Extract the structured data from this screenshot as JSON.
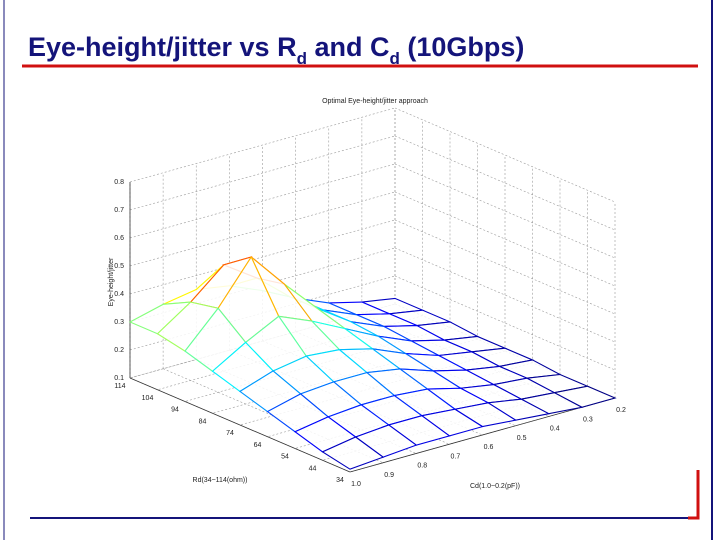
{
  "header": {
    "title_1": "Eye-height/jitter vs R",
    "sub_1": "d",
    "title_2": " and C",
    "sub_2": "d",
    "title_3": " (10Gbps)"
  },
  "chart_data": {
    "type": "surface",
    "title": "Optimal Eye-height/jitter approach",
    "xlabel": "Rd(34~114(ohm))",
    "ylabel": "Cd(1.0~0.2(pF))",
    "zlabel": "Eye-height/jitter",
    "colormap": "jet",
    "x": [
      114,
      104,
      94,
      84,
      74,
      64,
      54,
      44,
      34
    ],
    "y": [
      1.0,
      0.9,
      0.8,
      0.7,
      0.6,
      0.5,
      0.4,
      0.3,
      0.2
    ],
    "z": [
      [
        0.3,
        0.33,
        0.35,
        0.33,
        0.28,
        0.22,
        0.17,
        0.14,
        0.12
      ],
      [
        0.3,
        0.38,
        0.48,
        0.4,
        0.3,
        0.22,
        0.17,
        0.14,
        0.12
      ],
      [
        0.28,
        0.4,
        0.55,
        0.42,
        0.3,
        0.22,
        0.17,
        0.14,
        0.12
      ],
      [
        0.25,
        0.32,
        0.38,
        0.33,
        0.27,
        0.21,
        0.16,
        0.13,
        0.11
      ],
      [
        0.22,
        0.26,
        0.28,
        0.27,
        0.24,
        0.19,
        0.15,
        0.13,
        0.11
      ],
      [
        0.19,
        0.22,
        0.23,
        0.23,
        0.21,
        0.17,
        0.14,
        0.12,
        0.11
      ],
      [
        0.16,
        0.18,
        0.19,
        0.19,
        0.18,
        0.15,
        0.13,
        0.12,
        0.1
      ],
      [
        0.13,
        0.15,
        0.16,
        0.16,
        0.15,
        0.14,
        0.12,
        0.11,
        0.1
      ],
      [
        0.11,
        0.12,
        0.13,
        0.13,
        0.13,
        0.12,
        0.11,
        0.1,
        0.1
      ]
    ],
    "xlim": [
      34,
      114
    ],
    "xticks": [
      114,
      104,
      94,
      84,
      74,
      64,
      54,
      44,
      34
    ],
    "ylim": [
      0.2,
      1.0
    ],
    "yticks": [
      {
        "value": 1.0,
        "label": "1.0"
      },
      0.9,
      0.8,
      0.7,
      0.6,
      0.5,
      0.4,
      0.3,
      0.2
    ],
    "zlim": [
      0.1,
      0.8
    ],
    "zticks": [
      0.1,
      0.2,
      0.3,
      0.4,
      0.5,
      0.6,
      0.7,
      0.8
    ],
    "grid": true
  }
}
